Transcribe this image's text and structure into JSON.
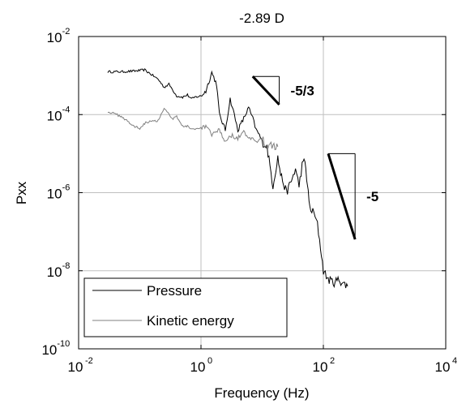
{
  "chart_data": {
    "type": "line",
    "title": "-2.89 D",
    "xlabel": "Frequency (Hz)",
    "ylabel": "Pxx",
    "xscale": "log",
    "yscale": "log",
    "xlim": [
      0.01,
      10000
    ],
    "ylim": [
      1e-10,
      0.01
    ],
    "grid": true,
    "legend_position": "bottom-left",
    "x_ticks": [
      {
        "base": "10",
        "exp": "-2"
      },
      {
        "base": "10",
        "exp": "0"
      },
      {
        "base": "10",
        "exp": "2"
      },
      {
        "base": "10",
        "exp": "4"
      }
    ],
    "y_ticks": [
      {
        "base": "10",
        "exp": "-10"
      },
      {
        "base": "10",
        "exp": "-8"
      },
      {
        "base": "10",
        "exp": "-6"
      },
      {
        "base": "10",
        "exp": "-4"
      },
      {
        "base": "10",
        "exp": "-2"
      }
    ],
    "series": [
      {
        "name": "Pressure",
        "color": "#000000",
        "x": [
          0.03,
          0.05,
          0.08,
          0.12,
          0.15,
          0.2,
          0.25,
          0.3,
          0.4,
          0.5,
          0.6,
          0.7,
          0.8,
          1.0,
          1.2,
          1.5,
          1.8,
          2.0,
          2.5,
          3.0,
          3.5,
          4.0,
          5.0,
          6.0,
          7.0,
          8.0,
          9.0,
          10,
          12,
          15,
          18,
          20,
          25,
          30,
          35,
          40,
          45,
          50,
          55,
          60,
          70,
          80,
          90,
          100,
          120,
          150,
          180,
          200,
          250
        ],
        "y": [
          0.00125,
          0.00125,
          0.0013,
          0.0014,
          0.0011,
          0.0008,
          0.0005,
          0.0006,
          0.0003,
          0.00028,
          0.00032,
          0.00025,
          0.00028,
          0.0003,
          0.0004,
          0.0012,
          0.0006,
          0.0001,
          4e-05,
          0.00025,
          0.0001,
          4e-05,
          8e-05,
          0.00015,
          8e-05,
          4e-05,
          3e-05,
          2e-05,
          1.5e-05,
          1.5e-06,
          8e-06,
          3e-06,
          1e-06,
          2e-06,
          4e-06,
          1.5e-06,
          5e-06,
          6.5e-06,
          1.5e-06,
          4e-07,
          3e-07,
          1.5e-07,
          4e-08,
          1e-08,
          6e-09,
          5e-09,
          6e-09,
          5e-09,
          4e-09
        ]
      },
      {
        "name": "Kinetic energy",
        "color": "#808080",
        "x": [
          0.03,
          0.05,
          0.08,
          0.1,
          0.12,
          0.15,
          0.2,
          0.25,
          0.3,
          0.35,
          0.4,
          0.5,
          0.6,
          0.8,
          1.0,
          1.2,
          1.5,
          2.0,
          2.5,
          3.0,
          4.0,
          5.0,
          6.0,
          8.0,
          10,
          12,
          15,
          18
        ],
        "y": [
          0.00012,
          9e-05,
          5e-05,
          4.5e-05,
          6e-05,
          7e-05,
          7e-05,
          0.00015,
          0.0001,
          8e-05,
          9e-05,
          5e-05,
          5e-05,
          4e-05,
          4.5e-05,
          5e-05,
          3e-05,
          4e-05,
          2e-05,
          3e-05,
          2.5e-05,
          3.5e-05,
          2.5e-05,
          2e-05,
          2.2e-05,
          1.8e-05,
          1.7e-05,
          1.5e-05
        ]
      }
    ],
    "annotations": [
      {
        "label": "-5/3",
        "slope": -1.6667,
        "x_start": 7,
        "x_end": 19,
        "y_top": 0.00095
      },
      {
        "label": "-5",
        "slope": -5,
        "x_start": 120,
        "x_end": 330,
        "y_top": 1e-05
      }
    ]
  }
}
